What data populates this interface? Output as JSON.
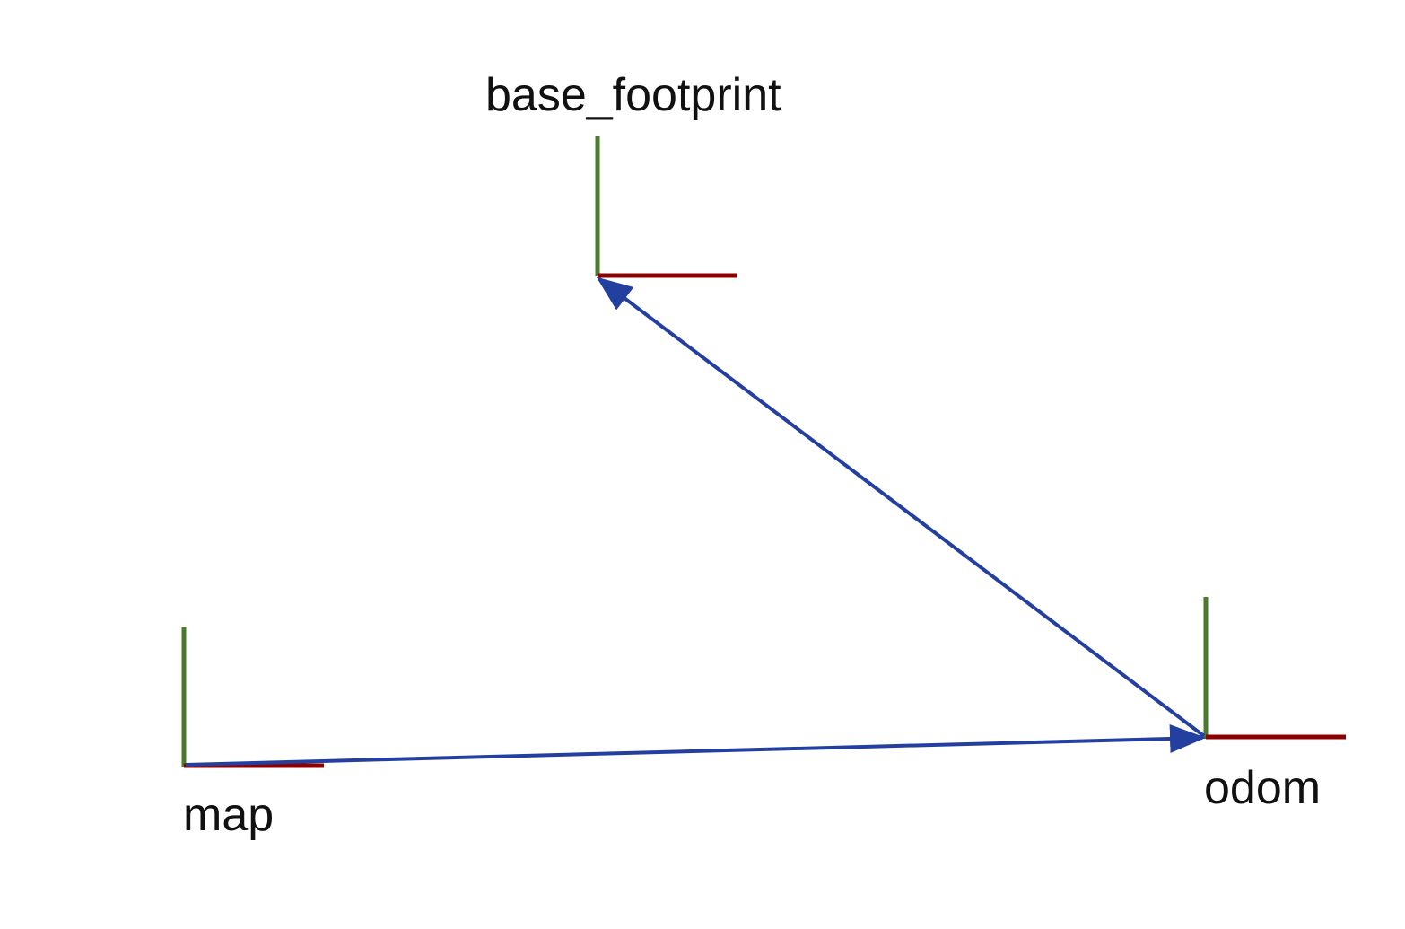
{
  "colors": {
    "background": "#ffffff",
    "x_axis": "#8b0000",
    "y_axis": "#4a7a2c",
    "transform_arrow": "#233fa0",
    "label_text": "#111111"
  },
  "frames": {
    "map": {
      "label": "map"
    },
    "odom": {
      "label": "odom"
    },
    "base_footprint": {
      "label": "base_footprint"
    }
  },
  "transforms": [
    {
      "from": "map",
      "to": "odom"
    },
    {
      "from": "odom",
      "to": "base_footprint"
    }
  ]
}
